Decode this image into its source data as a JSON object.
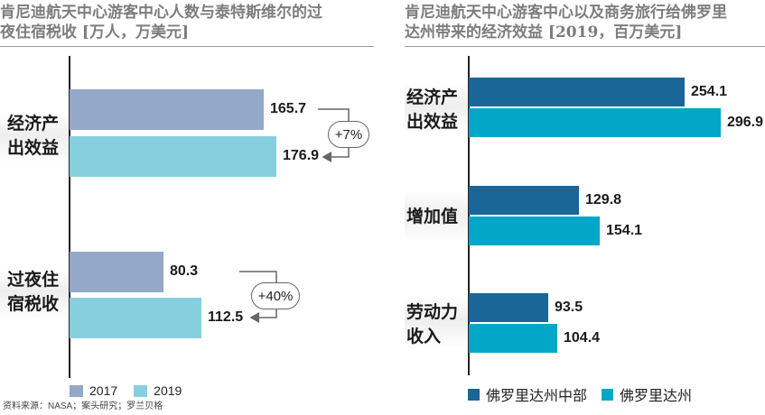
{
  "chart_data": [
    {
      "type": "bar",
      "orientation": "horizontal",
      "title": "肯尼迪航天中心游客中心人数与泰特斯维尔的过夜住宿税收 [万人，万美元]",
      "title_lines": [
        "肯尼迪航天中心游客中心人数与泰特斯维尔的过",
        "夜住宿税收 [万人，万美元]"
      ],
      "categories": [
        "经济产出效益",
        "过夜住宿税收"
      ],
      "category_lines": [
        [
          "经济产",
          "出效益"
        ],
        [
          "过夜住",
          "宿税收"
        ]
      ],
      "series": [
        {
          "name": "2017",
          "values": [
            165.7,
            80.3
          ],
          "color": "#94a8c8"
        },
        {
          "name": "2019",
          "values": [
            176.9,
            112.5
          ],
          "color": "#86cfdf"
        }
      ],
      "value_labels": [
        [
          "165.7",
          "80.3"
        ],
        [
          "176.9",
          "112.5"
        ]
      ],
      "annotations": [
        "+7%",
        "+40%"
      ],
      "xlim": [
        0,
        200
      ]
    },
    {
      "type": "bar",
      "orientation": "horizontal",
      "title": "肯尼迪航天中心游客中心以及商务旅行给佛罗里达州带来的经济效益 [2019，百万美元]",
      "title_lines": [
        "肯尼迪航天中心游客中心以及商务旅行给佛罗里",
        "达州带来的经济效益 [2019，百万美元]"
      ],
      "categories": [
        "经济产出效益",
        "增加值",
        "劳动力收入"
      ],
      "category_lines": [
        [
          "经济产",
          "出效益"
        ],
        [
          "增加值"
        ],
        [
          "劳动力",
          "收入"
        ]
      ],
      "series": [
        {
          "name": "佛罗里达州中部",
          "values": [
            254.1,
            129.8,
            93.5
          ],
          "color": "#1a6698"
        },
        {
          "name": "佛罗里达州",
          "values": [
            296.9,
            154.1,
            104.4
          ],
          "color": "#00a7c6"
        }
      ],
      "value_labels": [
        [
          "254.1",
          "129.8",
          "93.5"
        ],
        [
          "296.9",
          "154.1",
          "104.4"
        ]
      ],
      "xlim": [
        0,
        320
      ]
    }
  ],
  "source": "资料来源：NASA；案头研究；罗兰贝格"
}
